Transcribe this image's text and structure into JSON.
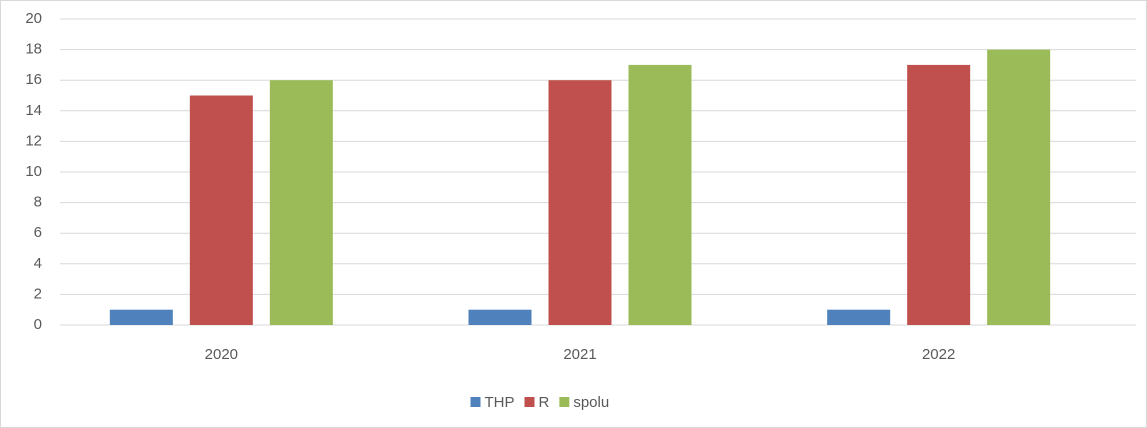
{
  "chart_data": {
    "type": "bar",
    "categories": [
      "2020",
      "2021",
      "2022"
    ],
    "series": [
      {
        "name": "THP",
        "color": "#4f81bd",
        "values": [
          1,
          1,
          1
        ]
      },
      {
        "name": "R",
        "color": "#c0504d",
        "values": [
          15,
          16,
          17
        ]
      },
      {
        "name": "spolu",
        "color": "#9bbb59",
        "values": [
          16,
          17,
          18
        ]
      }
    ],
    "ylim": [
      0,
      20
    ],
    "yticks": [
      0,
      2,
      4,
      6,
      8,
      10,
      12,
      14,
      16,
      18,
      20
    ],
    "grid": true,
    "legend": "bottom"
  }
}
